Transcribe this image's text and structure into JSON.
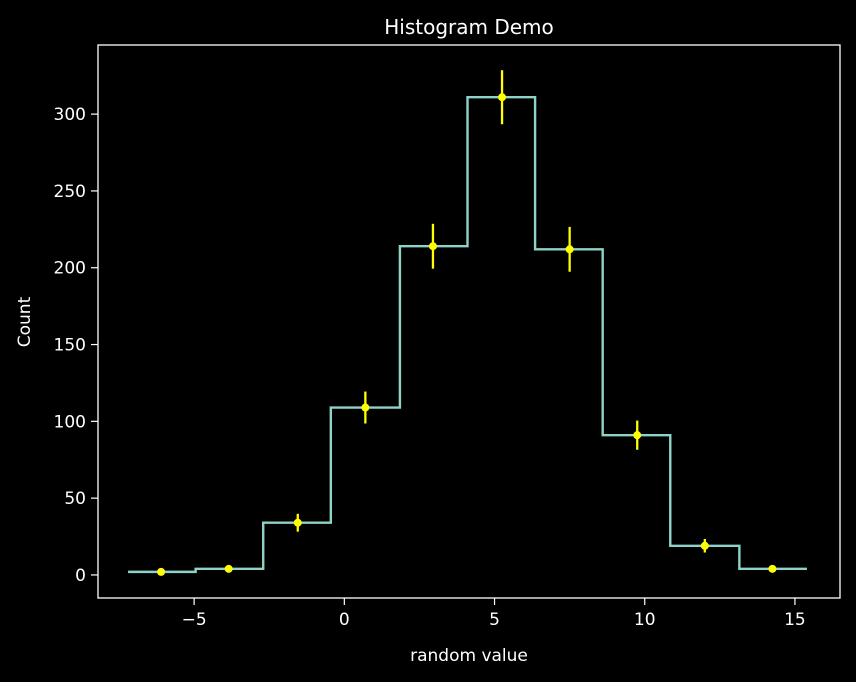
{
  "chart_data": {
    "type": "histogram",
    "title": "Histogram Demo",
    "xlabel": "random value",
    "ylabel": "Count",
    "xlim": [
      -8.2,
      16.5
    ],
    "ylim": [
      -15,
      345
    ],
    "xticks": [
      -5,
      0,
      5,
      10,
      15
    ],
    "xtick_labels": [
      "−5",
      "0",
      "5",
      "10",
      "15"
    ],
    "yticks": [
      0,
      50,
      100,
      150,
      200,
      250,
      300
    ],
    "ytick_labels": [
      "0",
      "50",
      "100",
      "150",
      "200",
      "250",
      "300"
    ],
    "bin_edges": [
      -7.2,
      -4.95,
      -2.7,
      -0.45,
      1.85,
      4.1,
      6.35,
      8.6,
      10.85,
      13.15,
      15.4
    ],
    "counts": [
      2,
      4,
      34,
      109,
      214,
      311,
      212,
      91,
      19,
      4
    ],
    "bin_centers": [
      -6.1,
      -3.85,
      -1.55,
      0.7,
      2.95,
      5.25,
      7.5,
      9.75,
      12.0,
      14.25
    ],
    "errors": [
      1.4,
      2.0,
      5.8,
      10.4,
      14.6,
      17.6,
      14.6,
      9.5,
      4.4,
      2.0
    ],
    "grid": false,
    "colors": {
      "background": "#000000",
      "axes": "#ffffff",
      "step_line": "#8dd3c7",
      "error_points": "#ffff00"
    }
  }
}
